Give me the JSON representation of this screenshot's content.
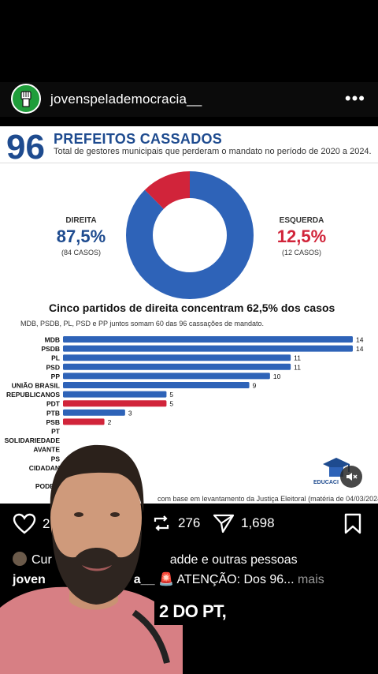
{
  "post": {
    "username": "jovenspelademocracia__",
    "more_icon": "more-horizontal-icon",
    "likes_partial": "2,",
    "reposts": "276",
    "shares": "1,698",
    "likes_line_left": "Cur",
    "likes_line_right": "adde e outras pessoas",
    "caption_user_left": "joven",
    "caption_user_right": "a__",
    "caption_emoji": "🚨",
    "caption_text": "ATENÇÃO: Dos 96...",
    "more_label": "mais",
    "subtitle": "2 DO PT,"
  },
  "infographic": {
    "number": "96",
    "title": "PREFEITOS CASSADOS",
    "subtitle": "Total de gestores municipais que perderam o mandato no período de 2020 a 2024.",
    "left_name": "DIREITA",
    "left_pct": "87,5%",
    "left_cases": "(84 CASOS)",
    "right_name": "ESQUERDA",
    "right_pct": "12,5%",
    "right_cases": "(12 CASOS)",
    "bars_title": "Cinco partidos de direita concentram 62,5% dos casos",
    "bars_sub": "MDB, PSDB, PL, PSD e PP juntos somam 60 das 96 cassações de mandato.",
    "footnote": "com base em levantamento da Justiça Eleitoral (matéria de 04/03/2024)",
    "logo_text": "EDUCACI"
  },
  "chart_data": [
    {
      "type": "pie",
      "categories": [
        "DIREITA",
        "ESQUERDA"
      ],
      "values": [
        87.5,
        12.5
      ],
      "colors": [
        "#2e63b8",
        "#d1243a"
      ]
    },
    {
      "type": "bar",
      "categories": [
        "MDB",
        "PSDB",
        "PL",
        "PSD",
        "PP",
        "UNIÃO BRASIL",
        "REPUBLICANOS",
        "PDT",
        "PTB",
        "PSB",
        "PT",
        "SOLIDARIEDADE",
        "AVANTE",
        "PS",
        "CIDADAN",
        "R",
        "PODEM"
      ],
      "values": [
        14,
        14,
        11,
        11,
        10,
        9,
        5,
        5,
        3,
        2,
        null,
        null,
        null,
        null,
        null,
        null,
        null
      ],
      "colors": [
        "#2e63b8",
        "#2e63b8",
        "#2e63b8",
        "#2e63b8",
        "#2e63b8",
        "#2e63b8",
        "#2e63b8",
        "#d1243a",
        "#2e63b8",
        "#d1243a",
        "#d1243a",
        "#d1243a",
        "#2e63b8",
        "#d1243a",
        "#d1243a",
        "#2e63b8",
        "#2e63b8"
      ],
      "xlim": [
        0,
        14
      ]
    }
  ]
}
